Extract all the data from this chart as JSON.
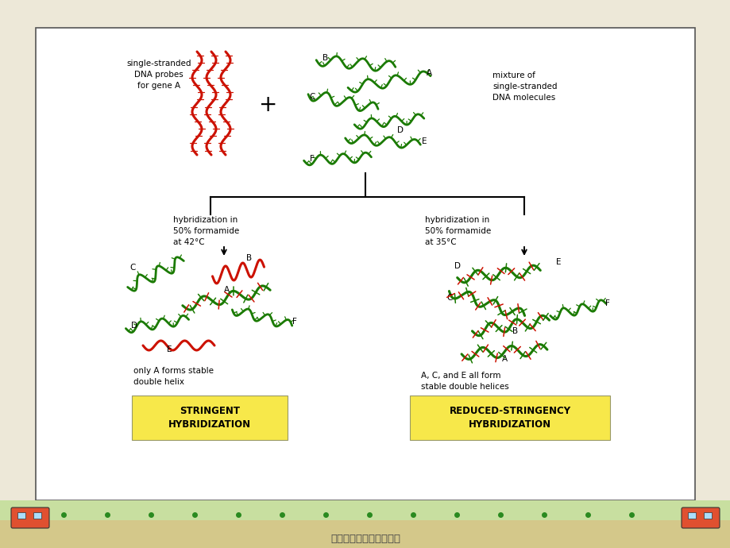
{
  "bg_color": "#ede8d8",
  "panel_bg": "#ffffff",
  "title_text": "细胞分子生物学研究方法",
  "red_color": "#cc1100",
  "green_color": "#1a7a00",
  "yellow_box_color": "#f7e84a",
  "text_color": "#111111",
  "left_box_text": "STRINGENT\nHYBRIDIZATION",
  "right_box_text": "REDUCED-STRINGENCY\nHYBRIDIZATION",
  "left_label": "hybridization in\n50% formamide\nat 42°C",
  "right_label": "hybridization in\n50% formamide\nat 35°C",
  "top_left_label": "single-stranded\nDNA probes\nfor gene A",
  "top_right_label": "mixture of\nsingle-stranded\nDNA molecules",
  "bottom_left_text": "only A forms stable\ndouble helix",
  "bottom_right_text": "A, C, and E all form\nstable double helices"
}
